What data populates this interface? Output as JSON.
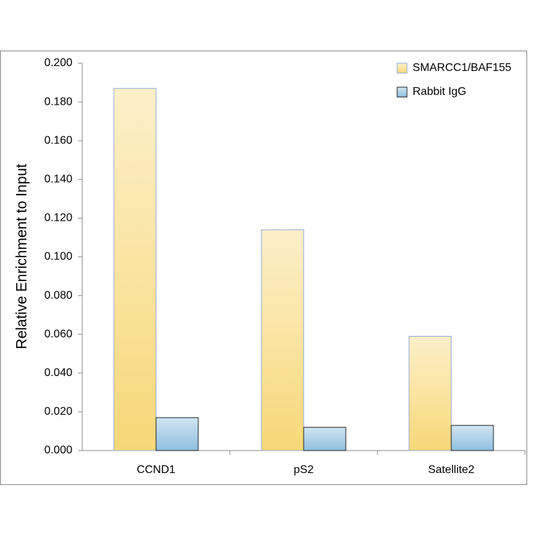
{
  "chart_data": {
    "type": "bar",
    "y_label": "Relative Enrichment to Input",
    "categories": [
      "CCND1",
      "pS2",
      "Satellite2"
    ],
    "series": [
      {
        "name": "SMARCC1/BAF155",
        "color": "#f7d878",
        "values": [
          0.187,
          0.114,
          0.059
        ]
      },
      {
        "name": "Rabbit IgG",
        "color": "#8ebfe0",
        "values": [
          0.017,
          0.012,
          0.013
        ]
      }
    ],
    "ylim": [
      0,
      0.2
    ],
    "yticks": [
      {
        "value": 0,
        "label": "0.000"
      },
      {
        "value": 0.02,
        "label": "0.020"
      },
      {
        "value": 0.04,
        "label": "0.040"
      },
      {
        "value": 0.06,
        "label": "0.060"
      },
      {
        "value": 0.08,
        "label": "0.080"
      },
      {
        "value": 0.1,
        "label": "0.100"
      },
      {
        "value": 0.12,
        "label": "0.120"
      },
      {
        "value": 0.14,
        "label": "0.140"
      },
      {
        "value": 0.16,
        "label": "0.160"
      },
      {
        "value": 0.18,
        "label": "0.180"
      },
      {
        "value": 0.2,
        "label": "0.200"
      }
    ],
    "legend": "top-right"
  }
}
